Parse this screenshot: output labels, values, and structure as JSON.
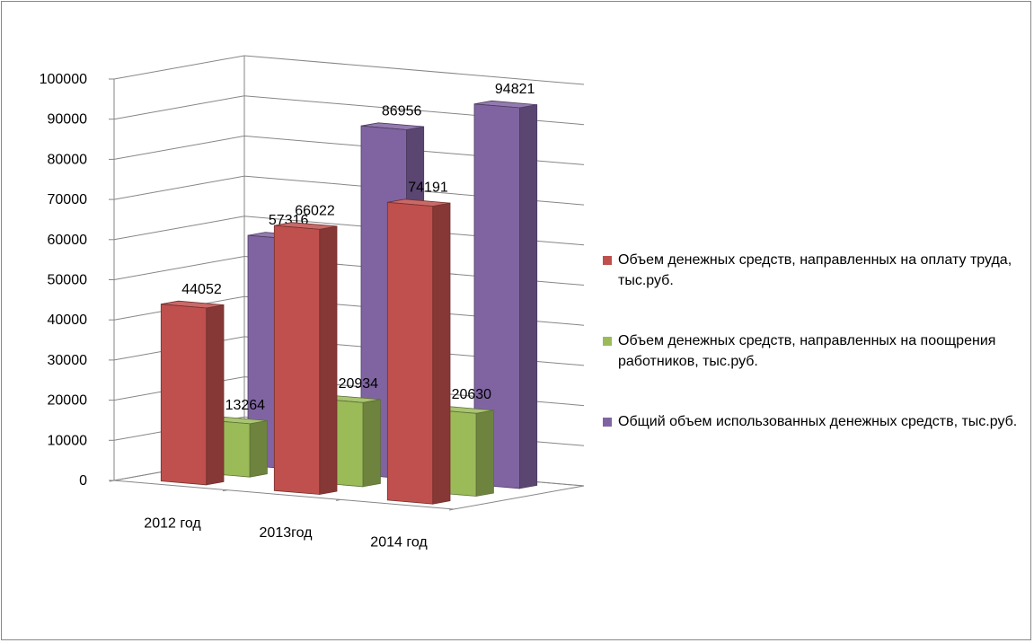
{
  "chart_data": {
    "type": "bar",
    "three_d": true,
    "categories": [
      "2012 год",
      "2013год",
      "2014 год"
    ],
    "series": [
      {
        "name": "Объем денежных средств, направленных на оплату труда, тыс.руб.",
        "values": [
          44052,
          66022,
          74191
        ],
        "color": "#C0504D"
      },
      {
        "name": "Объем денежных средств, направленных на поощрения работников, тыс.руб.",
        "values": [
          13264,
          20934,
          20630
        ],
        "color": "#9BBB59"
      },
      {
        "name": "Общий объем использованных денежных средств, тыс.руб.",
        "values": [
          57316,
          86956,
          94821
        ],
        "color": "#8064A2"
      }
    ],
    "y_ticks": [
      "0",
      "10000",
      "20000",
      "30000",
      "40000",
      "50000",
      "60000",
      "70000",
      "80000",
      "90000",
      "100000"
    ],
    "ylim": [
      0,
      100000
    ],
    "legend_position": "right",
    "grid": true,
    "title": "",
    "xlabel": "",
    "ylabel": ""
  }
}
